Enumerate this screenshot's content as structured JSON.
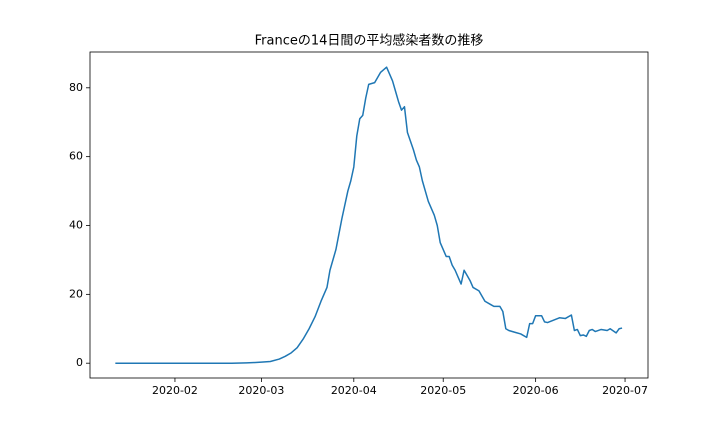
{
  "chart_data": {
    "type": "line",
    "title": "Franceの14日間の平均感染者数の推移",
    "x": [
      11,
      20,
      30,
      40,
      50,
      55,
      58,
      60,
      63,
      66,
      68,
      70,
      72,
      74,
      76,
      78,
      80,
      82,
      83,
      85,
      87,
      89,
      90,
      91,
      92,
      93,
      94,
      95,
      96,
      98,
      100,
      102,
      104,
      105,
      106,
      107,
      108,
      109,
      110,
      111,
      112,
      113,
      114,
      116,
      118,
      119,
      120,
      121,
      122,
      123,
      124,
      125,
      126,
      127,
      128,
      129,
      130,
      131,
      133,
      134,
      135,
      137,
      138,
      140,
      141,
      142,
      143,
      145,
      147,
      149,
      150,
      151,
      152,
      154,
      155,
      156,
      158,
      160,
      162,
      164,
      165,
      166,
      167,
      168,
      169,
      170,
      171,
      172,
      174,
      176,
      177,
      179,
      180,
      181
    ],
    "values": [
      0,
      0,
      0,
      0,
      0,
      0.1,
      0.2,
      0.3,
      0.5,
      1.2,
      2,
      3,
      4.5,
      7,
      10,
      13.5,
      18,
      22,
      27,
      33,
      42,
      50,
      53,
      57,
      66,
      71,
      72,
      77,
      81,
      81.5,
      84.5,
      86,
      82,
      79,
      76,
      73.5,
      74.5,
      67,
      64.5,
      62,
      59,
      57,
      53,
      47,
      43,
      40,
      35,
      33,
      31,
      31,
      28.5,
      27,
      25,
      23,
      27,
      25.5,
      24,
      22,
      21,
      19.5,
      18,
      17,
      16.5,
      16.5,
      15,
      10,
      9.5,
      9,
      8.5,
      7.5,
      11.5,
      11.5,
      13.8,
      13.8,
      12,
      11.8,
      12.5,
      13.2,
      13,
      14,
      9.5,
      9.8,
      8,
      8.2,
      7.8,
      9.5,
      9.8,
      9.2,
      9.8,
      9.5,
      10,
      8.8,
      10,
      10.2
    ],
    "color": "#1f77b4",
    "xlim": [
      2.5,
      189.7
    ],
    "xticks": [
      {
        "value": 31,
        "label": "2020-02"
      },
      {
        "value": 60,
        "label": "2020-03"
      },
      {
        "value": 91,
        "label": "2020-04"
      },
      {
        "value": 121,
        "label": "2020-05"
      },
      {
        "value": 152,
        "label": "2020-06"
      },
      {
        "value": 182,
        "label": "2020-07"
      }
    ],
    "ylim": [
      -4.3,
      90.4
    ],
    "yticks": [
      0,
      20,
      40,
      60,
      80
    ]
  }
}
